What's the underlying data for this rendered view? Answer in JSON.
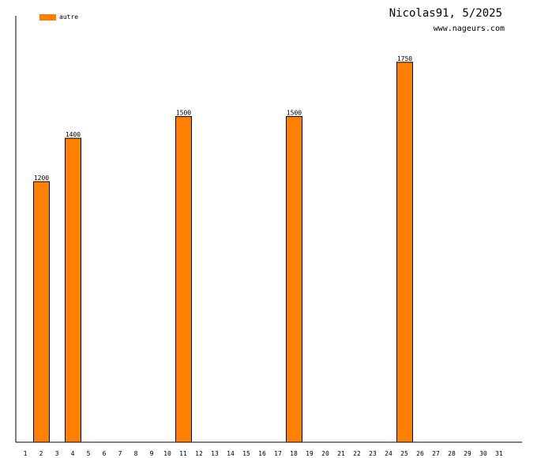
{
  "header": {
    "title": "Nicolas91, 5/2025",
    "site": "www.nageurs.com"
  },
  "legend": {
    "label": "autre",
    "color": "#ff7f00"
  },
  "chart_data": {
    "type": "bar",
    "categories": [
      "1",
      "2",
      "3",
      "4",
      "5",
      "6",
      "7",
      "8",
      "9",
      "10",
      "11",
      "12",
      "13",
      "14",
      "15",
      "16",
      "17",
      "18",
      "19",
      "20",
      "21",
      "22",
      "23",
      "24",
      "25",
      "26",
      "27",
      "28",
      "29",
      "30",
      "31"
    ],
    "series": [
      {
        "name": "autre",
        "color": "#ff7f00",
        "values": [
          null,
          1200,
          null,
          1400,
          null,
          null,
          null,
          null,
          null,
          null,
          1500,
          null,
          null,
          null,
          null,
          null,
          null,
          1500,
          null,
          null,
          null,
          null,
          null,
          null,
          1750,
          null,
          null,
          null,
          null,
          null,
          null
        ]
      }
    ],
    "ylim": [
      0,
      1964
    ],
    "grid": false
  }
}
